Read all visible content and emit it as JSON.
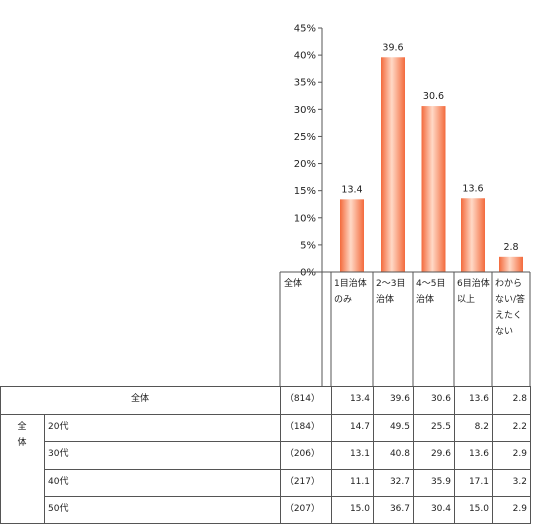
{
  "chart_data": {
    "type": "bar",
    "categories": [
      "1目治体のみ",
      "2～3目治体",
      "4～5目治体",
      "6目治体以上",
      "わからない/答えたくない"
    ],
    "category_lines": [
      [
        "1目治体",
        "のみ"
      ],
      [
        "2～3目",
        "治体"
      ],
      [
        "4～5目",
        "治体"
      ],
      [
        "6目治体",
        "以上"
      ],
      [
        "わから",
        "ない/答",
        "えたく",
        "ない"
      ]
    ],
    "values": [
      13.4,
      39.6,
      30.6,
      13.6,
      2.8
    ],
    "value_labels": [
      "13.4",
      "39.6",
      "30.6",
      "13.6",
      "2.8"
    ],
    "yticks": [
      "45%",
      "40%",
      "35%",
      "30%",
      "25%",
      "20%",
      "15%",
      "10%",
      "5%",
      "0%"
    ],
    "ylim": [
      0,
      45
    ],
    "bar_color": "#f05a28",
    "table_header_label": "全体",
    "grid": false
  },
  "table": {
    "group_label": [
      "全",
      "体"
    ],
    "rows": [
      {
        "label": "全体",
        "n": "（814）",
        "values": [
          "13.4",
          "39.6",
          "30.6",
          "13.6",
          "2.8"
        ]
      },
      {
        "label": "20代",
        "n": "（184）",
        "values": [
          "14.7",
          "49.5",
          "25.5",
          "8.2",
          "2.2"
        ]
      },
      {
        "label": "30代",
        "n": "（206）",
        "values": [
          "13.1",
          "40.8",
          "29.6",
          "13.6",
          "2.9"
        ]
      },
      {
        "label": "40代",
        "n": "（217）",
        "values": [
          "11.1",
          "32.7",
          "35.9",
          "17.1",
          "3.2"
        ]
      },
      {
        "label": "50代",
        "n": "（207）",
        "values": [
          "15.0",
          "36.7",
          "30.4",
          "15.0",
          "2.9"
        ]
      }
    ]
  }
}
